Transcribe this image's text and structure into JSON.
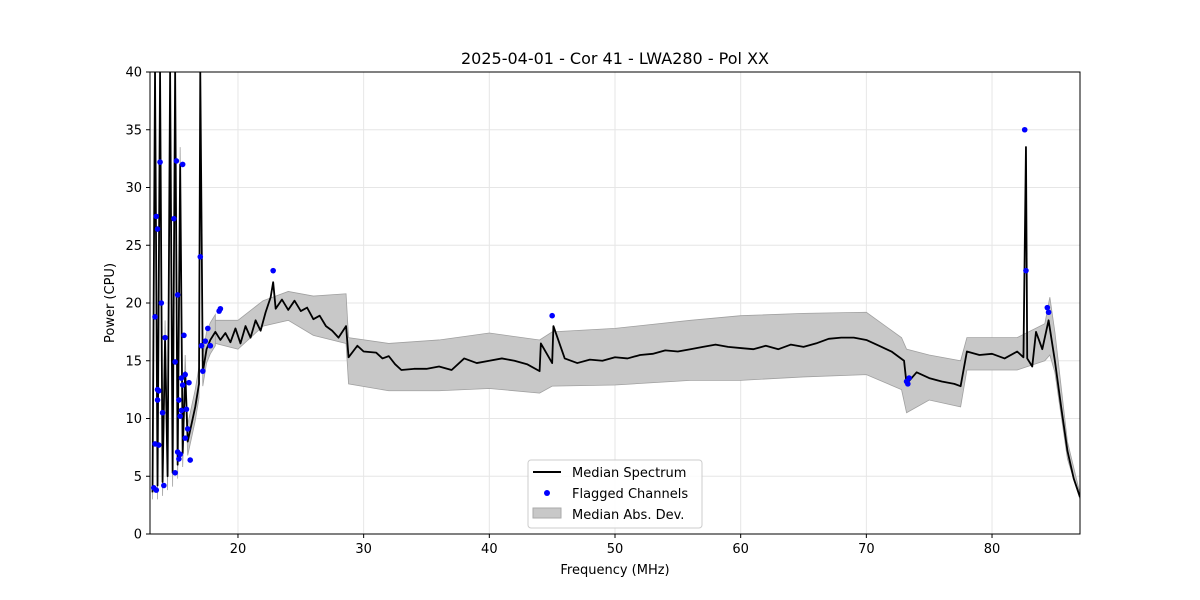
{
  "chart_data": {
    "type": "line",
    "title": "2025-04-01 - Cor 41 - LWA280 - Pol XX",
    "xlabel": "Frequency (MHz)",
    "ylabel": "Power (CPU)",
    "xlim": [
      13,
      87
    ],
    "ylim": [
      0,
      40
    ],
    "xticks": [
      20,
      30,
      40,
      50,
      60,
      70,
      80
    ],
    "yticks": [
      0,
      5,
      10,
      15,
      20,
      25,
      30,
      35,
      40
    ],
    "grid": true,
    "legend_position": "bottom-center",
    "legend": [
      {
        "label": "Median Spectrum",
        "kind": "line",
        "color": "#000000"
      },
      {
        "label": "Flagged Channels",
        "kind": "marker",
        "color": "#0000ff"
      },
      {
        "label": "Median Abs. Dev.",
        "kind": "patch",
        "color": "#c8c8c8"
      }
    ],
    "series": [
      {
        "name": "Median Spectrum",
        "color": "#000000",
        "points": [
          [
            13.2,
            3.6
          ],
          [
            13.4,
            40
          ],
          [
            13.6,
            4.2
          ],
          [
            13.8,
            40
          ],
          [
            14.0,
            4.5
          ],
          [
            14.2,
            17
          ],
          [
            14.4,
            5
          ],
          [
            14.6,
            40
          ],
          [
            14.8,
            5.3
          ],
          [
            15.0,
            40
          ],
          [
            15.2,
            6
          ],
          [
            15.4,
            32
          ],
          [
            15.6,
            7
          ],
          [
            15.8,
            14
          ],
          [
            16.0,
            8
          ],
          [
            16.3,
            9.5
          ],
          [
            16.6,
            11
          ],
          [
            16.9,
            13
          ],
          [
            17.0,
            40
          ],
          [
            17.2,
            14
          ],
          [
            17.5,
            16
          ],
          [
            17.8,
            16.8
          ],
          [
            18.2,
            17.5
          ],
          [
            18.6,
            16.8
          ],
          [
            19.0,
            17.4
          ],
          [
            19.4,
            16.6
          ],
          [
            19.8,
            17.8
          ],
          [
            20.2,
            16.5
          ],
          [
            20.6,
            18
          ],
          [
            21.0,
            17
          ],
          [
            21.4,
            18.5
          ],
          [
            21.8,
            17.6
          ],
          [
            22.2,
            19.2
          ],
          [
            22.6,
            20.5
          ],
          [
            22.8,
            21.8
          ],
          [
            23.0,
            19.5
          ],
          [
            23.5,
            20.3
          ],
          [
            24.0,
            19.4
          ],
          [
            24.5,
            20.2
          ],
          [
            25.0,
            19.3
          ],
          [
            25.5,
            19.6
          ],
          [
            26.0,
            18.6
          ],
          [
            26.5,
            18.9
          ],
          [
            27.0,
            18
          ],
          [
            27.5,
            17.6
          ],
          [
            28.0,
            17
          ],
          [
            28.6,
            18
          ],
          [
            28.8,
            15.3
          ],
          [
            29.5,
            16.3
          ],
          [
            30.0,
            15.8
          ],
          [
            31.0,
            15.7
          ],
          [
            31.5,
            15.2
          ],
          [
            32.0,
            15.4
          ],
          [
            32.5,
            14.7
          ],
          [
            33.0,
            14.2
          ],
          [
            34.0,
            14.3
          ],
          [
            35.0,
            14.3
          ],
          [
            36.0,
            14.5
          ],
          [
            37.0,
            14.2
          ],
          [
            38.0,
            15.2
          ],
          [
            39.0,
            14.8
          ],
          [
            40.0,
            15
          ],
          [
            41.0,
            15.2
          ],
          [
            42.0,
            15
          ],
          [
            43.0,
            14.7
          ],
          [
            44.0,
            14.1
          ],
          [
            44.1,
            16.5
          ],
          [
            45.0,
            14.8
          ],
          [
            45.1,
            18
          ],
          [
            46.0,
            15.2
          ],
          [
            47.0,
            14.8
          ],
          [
            48.0,
            15.1
          ],
          [
            49.0,
            15
          ],
          [
            50.0,
            15.3
          ],
          [
            51.0,
            15.2
          ],
          [
            52.0,
            15.5
          ],
          [
            53.0,
            15.6
          ],
          [
            54.0,
            15.9
          ],
          [
            55.0,
            15.8
          ],
          [
            56.0,
            16
          ],
          [
            57.0,
            16.2
          ],
          [
            58.0,
            16.4
          ],
          [
            59.0,
            16.2
          ],
          [
            60.0,
            16.1
          ],
          [
            61.0,
            16
          ],
          [
            62.0,
            16.3
          ],
          [
            63.0,
            16
          ],
          [
            64.0,
            16.4
          ],
          [
            65.0,
            16.2
          ],
          [
            66.0,
            16.5
          ],
          [
            67.0,
            16.9
          ],
          [
            68.0,
            17
          ],
          [
            69.0,
            17
          ],
          [
            70.0,
            16.8
          ],
          [
            71.0,
            16.3
          ],
          [
            72.0,
            15.8
          ],
          [
            73.0,
            15
          ],
          [
            73.2,
            13
          ],
          [
            74.0,
            14
          ],
          [
            75.0,
            13.5
          ],
          [
            76.0,
            13.2
          ],
          [
            77.0,
            13
          ],
          [
            77.5,
            12.8
          ],
          [
            78.0,
            15.8
          ],
          [
            79.0,
            15.5
          ],
          [
            80.0,
            15.6
          ],
          [
            81.0,
            15.2
          ],
          [
            82.0,
            15.8
          ],
          [
            82.5,
            15.3
          ],
          [
            82.7,
            33.5
          ],
          [
            82.8,
            15.2
          ],
          [
            83.2,
            14.5
          ],
          [
            83.5,
            17.5
          ],
          [
            84.0,
            16
          ],
          [
            84.5,
            18.5
          ],
          [
            85.0,
            15
          ],
          [
            85.5,
            11
          ],
          [
            86.0,
            7.2
          ],
          [
            86.5,
            4.8
          ],
          [
            87.0,
            3.2
          ]
        ]
      },
      {
        "name": "Median Abs. Dev.",
        "color": "#c8c8c8",
        "bands": [
          [
            18.2,
            16.5,
            18.5
          ],
          [
            20,
            16,
            18.5
          ],
          [
            22,
            18,
            20.2
          ],
          [
            24,
            18.5,
            21
          ],
          [
            26,
            17.2,
            20.6
          ],
          [
            28.6,
            16.5,
            20.8
          ],
          [
            28.8,
            13,
            17
          ],
          [
            32,
            12.4,
            16.5
          ],
          [
            36,
            12.4,
            16.8
          ],
          [
            40,
            12.6,
            17.4
          ],
          [
            44,
            12.2,
            16.8
          ],
          [
            45,
            12.8,
            17.5
          ],
          [
            50,
            12.9,
            17.8
          ],
          [
            56,
            13.3,
            18.5
          ],
          [
            60,
            13.3,
            18.9
          ],
          [
            65,
            13.6,
            19.1
          ],
          [
            70,
            13.8,
            19.2
          ],
          [
            72.8,
            12.5,
            17
          ],
          [
            73.2,
            10.5,
            16
          ],
          [
            75,
            11.6,
            15.5
          ],
          [
            77.5,
            11,
            15
          ],
          [
            78,
            14.2,
            17
          ],
          [
            82,
            14.2,
            17
          ],
          [
            84.2,
            15,
            18.2
          ],
          [
            84.6,
            15.5,
            20.5
          ],
          [
            85,
            14,
            17.5
          ],
          [
            86,
            6.5,
            8
          ],
          [
            87,
            3,
            3.5
          ]
        ]
      },
      {
        "name": "Flagged Channels",
        "color": "#0000ff",
        "points": [
          [
            13.3,
            4
          ],
          [
            13.4,
            18.8
          ],
          [
            13.5,
            27.5
          ],
          [
            13.6,
            26.4
          ],
          [
            13.7,
            12.4
          ],
          [
            13.8,
            32.2
          ],
          [
            13.9,
            20
          ],
          [
            14.0,
            10.5
          ],
          [
            14.2,
            17
          ],
          [
            13.7,
            7.7
          ],
          [
            14.1,
            4.2
          ],
          [
            13.4,
            7.8
          ],
          [
            13.6,
            12.5
          ],
          [
            13.5,
            3.8
          ],
          [
            13.6,
            11.6
          ],
          [
            14.9,
            27.3
          ],
          [
            15.0,
            14.9
          ],
          [
            15.1,
            32.3
          ],
          [
            15.2,
            20.7
          ],
          [
            15.3,
            11.6
          ],
          [
            15.4,
            10.2
          ],
          [
            15.5,
            13.5
          ],
          [
            15.6,
            32
          ],
          [
            15.7,
            17.2
          ],
          [
            15.8,
            13.8
          ],
          [
            15.9,
            10.8
          ],
          [
            16.0,
            9.1
          ],
          [
            16.1,
            13.1
          ],
          [
            15.2,
            7.1
          ],
          [
            15.3,
            6.5
          ],
          [
            15.4,
            6.9
          ],
          [
            15.0,
            5.3
          ],
          [
            15.5,
            10.7
          ],
          [
            15.6,
            12.9
          ],
          [
            15.8,
            8.3
          ],
          [
            16.2,
            6.4
          ],
          [
            17.0,
            24
          ],
          [
            17.1,
            16.3
          ],
          [
            17.2,
            14.1
          ],
          [
            17.4,
            16.7
          ],
          [
            17.6,
            17.8
          ],
          [
            17.8,
            16.3
          ],
          [
            18.6,
            19.5
          ],
          [
            18.5,
            19.3
          ],
          [
            22.8,
            22.8
          ],
          [
            45.0,
            18.9
          ],
          [
            73.2,
            13.2
          ],
          [
            73.4,
            13.5
          ],
          [
            73.3,
            13
          ],
          [
            82.6,
            35
          ],
          [
            82.7,
            22.8
          ],
          [
            84.4,
            19.6
          ],
          [
            84.5,
            19.2
          ]
        ]
      }
    ]
  }
}
